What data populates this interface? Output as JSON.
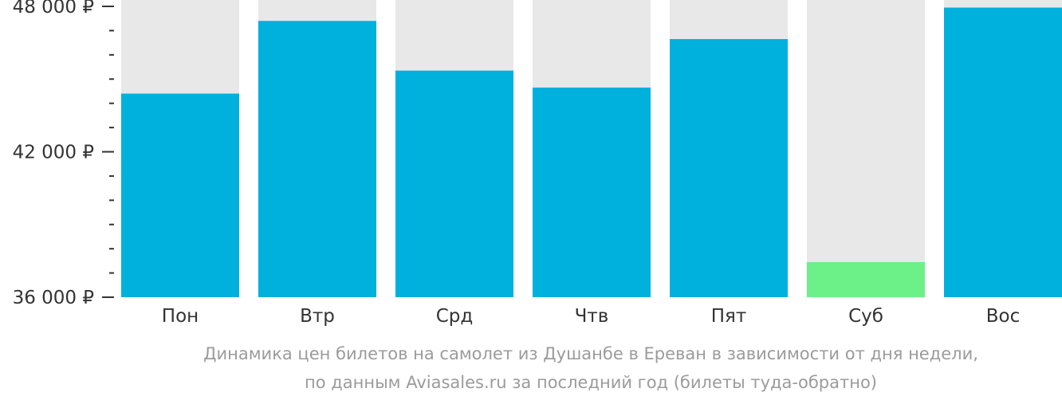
{
  "chart_data": {
    "type": "bar",
    "categories": [
      "Пон",
      "Втр",
      "Срд",
      "Чтв",
      "Пят",
      "Суб",
      "Вос"
    ],
    "values": [
      44400,
      47400,
      45350,
      44650,
      46650,
      37450,
      47950
    ],
    "ylim": [
      36000,
      48000
    ],
    "y_ticks_labeled": [
      {
        "value": 48000,
        "label": "48 000 ₽"
      },
      {
        "value": 42000,
        "label": "42 000 ₽"
      },
      {
        "value": 36000,
        "label": "36 000 ₽"
      }
    ],
    "y_minor_ticks": [
      47000,
      46000,
      45000,
      44000,
      43000,
      41000,
      40000,
      39000,
      38000,
      37000
    ],
    "colors": {
      "bar": "#00b0dd",
      "bar_lowest": "#6cf088",
      "background_column": "#e8e8e8",
      "axis": "#333333",
      "tick_label": "#333333"
    },
    "highlight_index": 5,
    "grid": false,
    "legend": "none"
  },
  "caption": {
    "line1": "Динамика цен билетов на самолет из Душанбе в Ереван в зависимости от дня недели,",
    "line2": "по данным Aviasales.ru за последний год (билеты туда-обратно)"
  }
}
